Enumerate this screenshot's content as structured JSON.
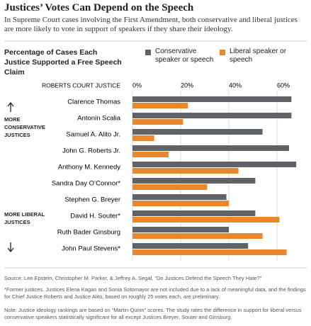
{
  "chart_data": {
    "type": "bar",
    "horizontal": true,
    "title": "Justices’ Votes Can Depend on the Speech",
    "subtitle": "In Supreme Court cases involving the First Amendment, both conservative and liberal justices are more likely to vote in support of speakers if they share their ideology.",
    "heading": "Percentage of Cases Each Justice Supported a Free Speech Claim",
    "category_header": "ROBERTS COURT JUSTICE",
    "annotations": [
      "MORE CONSERVATIVE JUSTICES",
      "MORE LIBERAL JUSTICES"
    ],
    "categories": [
      "Clarence Thomas",
      "Antonin Scalia",
      "Samuel A. Alito Jr.",
      "John G. Roberts Jr.",
      "Anthony M. Kennedy",
      "Sandra Day O’Connor*",
      "Stephen G. Breyer",
      "David H. Souter*",
      "Ruth Bader Ginsburg",
      "John Paul Stevens*"
    ],
    "series": [
      {
        "name": "Conservative speaker or speech",
        "color": "#5f6368",
        "values": [
          66,
          66,
          54,
          65,
          68,
          51,
          39,
          51,
          40,
          48
        ]
      },
      {
        "name": "Liberal speaker or speech",
        "color": "#e8882a",
        "values": [
          23,
          21,
          9,
          15,
          44,
          31,
          40,
          61,
          54,
          64
        ]
      }
    ],
    "xlim": [
      0,
      70
    ],
    "xticks": [
      {
        "value": 0,
        "label": "0%"
      },
      {
        "value": 20,
        "label": "20%"
      },
      {
        "value": 40,
        "label": "40%"
      },
      {
        "value": 60,
        "label": "60%"
      }
    ],
    "grid": true,
    "notes": [
      "Source: Lee Epstein, Christopher M. Parker, & Jeffrey A. Segal, “Do Justices Defend the Speech They Hate?”",
      "*Former justices. Justices Elena Kagan and Sonia Sotomayor are not included due to a lack of meaningful data, and the findings for Chief Justice Roberts and Justice Alito, based on roughly 25 votes each, are preliminary.",
      "Note: Justice ideology rankings are based on “Martin-Quinn” scores. The study rates the difference in support for liberal versus conservative speakers statistically significant for all except Justices Breyer, Souter and Ginsburg."
    ]
  }
}
